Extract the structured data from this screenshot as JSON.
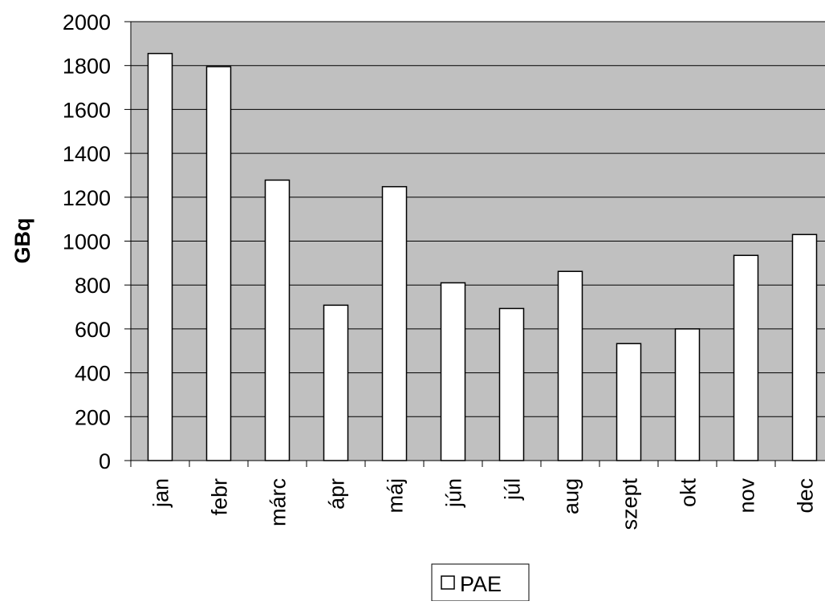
{
  "chart_data": {
    "type": "bar",
    "title": "",
    "xlabel": "",
    "ylabel": "GBq",
    "ylim": [
      0,
      2000
    ],
    "yticks": [
      0,
      200,
      400,
      600,
      800,
      1000,
      1200,
      1400,
      1600,
      1800,
      2000
    ],
    "grid": true,
    "legend": "bottom-center",
    "categories": [
      "jan",
      "febr",
      "márc",
      "ápr",
      "máj",
      "jún",
      "júl",
      "aug",
      "szept",
      "okt",
      "nov",
      "dec"
    ],
    "series": [
      {
        "name": "PAE",
        "values": [
          1855,
          1795,
          1278,
          708,
          1248,
          810,
          693,
          862,
          533,
          600,
          935,
          1030
        ]
      }
    ],
    "colors": {
      "plot_background": "#c0c0c0",
      "bar_fill": "#ffffff",
      "bar_stroke": "#000000",
      "gridline": "#000000"
    }
  }
}
